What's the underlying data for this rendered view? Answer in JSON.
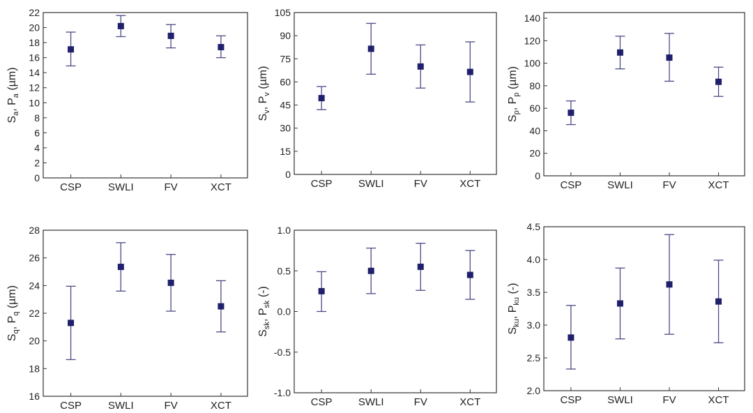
{
  "chart_data": [
    {
      "type": "scatter",
      "categories": [
        "CSP",
        "SWLI",
        "FV",
        "XCT"
      ],
      "values": [
        17.1,
        20.2,
        18.9,
        17.4
      ],
      "err_low": [
        14.9,
        18.8,
        17.3,
        16.0
      ],
      "err_high": [
        19.4,
        21.6,
        20.4,
        18.9
      ],
      "ylim": [
        0,
        22
      ],
      "yticks": [
        0,
        2,
        4,
        6,
        8,
        10,
        12,
        14,
        16,
        18,
        20,
        22
      ],
      "ylabel": {
        "a": "S",
        "a_sub": "a",
        "b": "P",
        "b_sub": "a",
        "unit": " (µm)"
      }
    },
    {
      "type": "scatter",
      "categories": [
        "CSP",
        "SWLI",
        "FV",
        "XCT"
      ],
      "values": [
        49.5,
        81.5,
        70.0,
        66.5
      ],
      "err_low": [
        42.0,
        65.0,
        56.0,
        47.0
      ],
      "err_high": [
        57.0,
        98.0,
        84.0,
        86.0
      ],
      "ylim": [
        0,
        105
      ],
      "yticks": [
        0,
        15,
        30,
        45,
        60,
        75,
        90,
        105
      ],
      "ylabel": {
        "a": "S",
        "a_sub": "v",
        "b": "P",
        "b_sub": "v",
        "unit": " (µm)"
      }
    },
    {
      "type": "scatter",
      "categories": [
        "CSP",
        "SWLI",
        "FV",
        "XCT"
      ],
      "values": [
        56,
        109.5,
        105,
        83.5
      ],
      "err_low": [
        45.5,
        95,
        84,
        70.5
      ],
      "err_high": [
        66.5,
        124,
        126.5,
        96.5
      ],
      "ylim": [
        0,
        145
      ],
      "yticks": [
        0,
        20,
        40,
        60,
        80,
        100,
        120,
        140
      ],
      "ylabel": {
        "a": "S",
        "a_sub": "p",
        "b": "P",
        "b_sub": "p",
        "unit": " (µm)"
      }
    },
    {
      "type": "scatter",
      "categories": [
        "CSP",
        "SWLI",
        "FV",
        "XCT"
      ],
      "values": [
        21.3,
        25.35,
        24.2,
        22.5
      ],
      "err_low": [
        18.65,
        23.6,
        22.15,
        20.65
      ],
      "err_high": [
        23.95,
        27.1,
        26.25,
        24.35
      ],
      "ylim": [
        16,
        28
      ],
      "yticks": [
        16,
        18,
        20,
        22,
        24,
        26,
        28
      ],
      "ylabel": {
        "a": "S",
        "a_sub": "q",
        "b": "P",
        "b_sub": "q",
        "unit": " (µm)"
      }
    },
    {
      "type": "scatter",
      "categories": [
        "CSP",
        "SWLI",
        "FV",
        "XCT"
      ],
      "values": [
        0.25,
        0.5,
        0.55,
        0.45
      ],
      "err_low": [
        0.0,
        0.22,
        0.26,
        0.15
      ],
      "err_high": [
        0.49,
        0.78,
        0.84,
        0.75
      ],
      "ylim": [
        -1.0,
        1.0
      ],
      "yticks": [
        -1.0,
        -0.5,
        0.0,
        0.5,
        1.0
      ],
      "ytick_labels": [
        "-1.0",
        "-0.5",
        "0.0",
        "0.5",
        "1.0"
      ],
      "ylabel": {
        "a": "S",
        "a_sub": "sk",
        "b": "P",
        "b_sub": "sk",
        "unit": " (-)"
      }
    },
    {
      "type": "scatter",
      "categories": [
        "CSP",
        "SWLI",
        "FV",
        "XCT"
      ],
      "values": [
        2.81,
        3.33,
        3.62,
        3.36
      ],
      "err_low": [
        2.33,
        2.79,
        2.86,
        2.73
      ],
      "err_high": [
        3.3,
        3.87,
        4.38,
        3.99
      ],
      "ylim": [
        2.0,
        4.5
      ],
      "yticks": [
        2.0,
        2.5,
        3.0,
        3.5,
        4.0,
        4.5
      ],
      "ytick_labels": [
        "2.0",
        "2.5",
        "3.0",
        "3.5",
        "4.0",
        "4.5"
      ],
      "ylabel": {
        "a": "S",
        "a_sub": "ku",
        "b": "P",
        "b_sub": "ku",
        "unit": " (-)"
      }
    }
  ],
  "colors": {
    "marker": "#1f1f6b",
    "errorbar": "#4a4a86",
    "axis": "#333333",
    "tick_text": "#222222",
    "panel_bg": "#ffffff"
  }
}
